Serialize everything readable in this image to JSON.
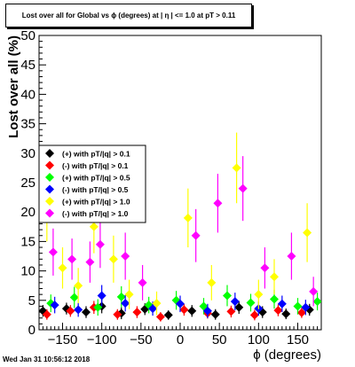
{
  "header": {
    "title": "Lost over all for Global vs ϕ (degrees) at | η | <= 1.0 at pT > 0.11"
  },
  "footer": {
    "timestamp": "Wed Jan 31 10:56:12 2018"
  },
  "colors": {
    "frame": "#000000",
    "background": "#ffffff"
  },
  "chart_data": {
    "type": "scatter",
    "title": "Lost over all for Global vs ϕ (degrees) at | η | <= 1.0 at pT > 0.11",
    "xlabel": "ϕ (degrees)",
    "ylabel": "Lost over all (%)",
    "xlim": [
      -180,
      180
    ],
    "ylim": [
      0,
      50
    ],
    "x_ticks": [
      -150,
      -100,
      -50,
      0,
      50,
      100,
      150
    ],
    "y_ticks": [
      0,
      5,
      10,
      15,
      20,
      25,
      30,
      35,
      40,
      45,
      50
    ],
    "grid": false,
    "legend_position": "middle-left",
    "series": [
      {
        "name": "(+) with pT/|q| > 0.1",
        "color": "#000000",
        "marker": "diamond",
        "points": [
          {
            "x": -175,
            "y": 3.2,
            "err": 1.0
          },
          {
            "x": -145,
            "y": 3.6,
            "err": 1.0
          },
          {
            "x": -120,
            "y": 3.0,
            "err": 1.0
          },
          {
            "x": -100,
            "y": 4.0,
            "err": 1.2
          },
          {
            "x": -75,
            "y": 2.8,
            "err": 1.0
          },
          {
            "x": -45,
            "y": 3.5,
            "err": 1.0
          },
          {
            "x": -15,
            "y": 2.5,
            "err": 0.8
          },
          {
            "x": 15,
            "y": 3.2,
            "err": 1.0
          },
          {
            "x": 45,
            "y": 2.6,
            "err": 0.9
          },
          {
            "x": 75,
            "y": 3.8,
            "err": 1.1
          },
          {
            "x": 105,
            "y": 3.0,
            "err": 1.0
          },
          {
            "x": 135,
            "y": 2.7,
            "err": 0.9
          },
          {
            "x": 165,
            "y": 3.4,
            "err": 1.0
          }
        ]
      },
      {
        "name": "(-) with pT/|q| > 0.1",
        "color": "#ff0000",
        "marker": "diamond",
        "points": [
          {
            "x": -170,
            "y": 2.6,
            "err": 0.9
          },
          {
            "x": -140,
            "y": 3.2,
            "err": 1.0
          },
          {
            "x": -110,
            "y": 3.8,
            "err": 1.1
          },
          {
            "x": -80,
            "y": 2.6,
            "err": 0.9
          },
          {
            "x": -55,
            "y": 3.0,
            "err": 1.0
          },
          {
            "x": -25,
            "y": 2.2,
            "err": 0.8
          },
          {
            "x": 5,
            "y": 3.4,
            "err": 1.0
          },
          {
            "x": 35,
            "y": 2.8,
            "err": 0.9
          },
          {
            "x": 65,
            "y": 3.1,
            "err": 1.0
          },
          {
            "x": 95,
            "y": 2.5,
            "err": 0.9
          },
          {
            "x": 125,
            "y": 3.3,
            "err": 1.0
          },
          {
            "x": 155,
            "y": 2.9,
            "err": 0.9
          }
        ]
      },
      {
        "name": "(+) with pT/|q| > 0.5",
        "color": "#00ff00",
        "marker": "diamond",
        "points": [
          {
            "x": -165,
            "y": 4.5,
            "err": 1.5
          },
          {
            "x": -135,
            "y": 5.5,
            "err": 1.8
          },
          {
            "x": -105,
            "y": 3.8,
            "err": 1.4
          },
          {
            "x": -75,
            "y": 5.6,
            "err": 1.8
          },
          {
            "x": -40,
            "y": 4.2,
            "err": 1.4
          },
          {
            "x": -5,
            "y": 5.0,
            "err": 1.6
          },
          {
            "x": 30,
            "y": 4.0,
            "err": 1.4
          },
          {
            "x": 60,
            "y": 5.8,
            "err": 1.8
          },
          {
            "x": 90,
            "y": 4.6,
            "err": 1.5
          },
          {
            "x": 120,
            "y": 5.2,
            "err": 1.6
          },
          {
            "x": 150,
            "y": 4.0,
            "err": 1.4
          },
          {
            "x": 175,
            "y": 4.8,
            "err": 1.5
          }
        ]
      },
      {
        "name": "(-) with pT/|q| > 0.5",
        "color": "#0000ff",
        "marker": "diamond",
        "points": [
          {
            "x": -160,
            "y": 4.2,
            "err": 1.4
          },
          {
            "x": -130,
            "y": 3.4,
            "err": 1.2
          },
          {
            "x": -100,
            "y": 5.8,
            "err": 1.8
          },
          {
            "x": -70,
            "y": 4.5,
            "err": 1.4
          },
          {
            "x": -35,
            "y": 3.6,
            "err": 1.2
          },
          {
            "x": 0,
            "y": 4.4,
            "err": 1.4
          },
          {
            "x": 35,
            "y": 3.2,
            "err": 1.2
          },
          {
            "x": 70,
            "y": 4.8,
            "err": 1.5
          },
          {
            "x": 100,
            "y": 3.6,
            "err": 1.2
          },
          {
            "x": 130,
            "y": 4.4,
            "err": 1.4
          },
          {
            "x": 160,
            "y": 3.8,
            "err": 1.3
          }
        ]
      },
      {
        "name": "(+) with pT/|q| > 1.0",
        "color": "#ffff00",
        "marker": "diamond",
        "points": [
          {
            "x": -170,
            "y": 19.5,
            "err": 4.5
          },
          {
            "x": -150,
            "y": 10.5,
            "err": 3.5
          },
          {
            "x": -130,
            "y": 7.5,
            "err": 3.0
          },
          {
            "x": -110,
            "y": 17.5,
            "err": 4.5
          },
          {
            "x": -85,
            "y": 12.0,
            "err": 4.0
          },
          {
            "x": -65,
            "y": 6.0,
            "err": 2.5
          },
          {
            "x": -30,
            "y": 4.5,
            "err": 2.0
          },
          {
            "x": 10,
            "y": 19.0,
            "err": 5.0
          },
          {
            "x": 40,
            "y": 8.0,
            "err": 3.0
          },
          {
            "x": 72,
            "y": 27.5,
            "err": 6.0
          },
          {
            "x": 100,
            "y": 6.0,
            "err": 2.5
          },
          {
            "x": 120,
            "y": 9.0,
            "err": 3.0
          },
          {
            "x": 162,
            "y": 16.5,
            "err": 5.0
          }
        ]
      },
      {
        "name": "(-) with pT/|q| > 1.0",
        "color": "#ff00ff",
        "marker": "diamond",
        "points": [
          {
            "x": -162,
            "y": 13.2,
            "err": 4.0
          },
          {
            "x": -138,
            "y": 12.0,
            "err": 3.5
          },
          {
            "x": -115,
            "y": 11.5,
            "err": 3.5
          },
          {
            "x": -102,
            "y": 14.5,
            "err": 4.0
          },
          {
            "x": -70,
            "y": 12.5,
            "err": 4.0
          },
          {
            "x": -48,
            "y": 8.0,
            "err": 3.0
          },
          {
            "x": 20,
            "y": 16.0,
            "err": 4.5
          },
          {
            "x": 48,
            "y": 21.5,
            "err": 5.0
          },
          {
            "x": 80,
            "y": 24.0,
            "err": 5.5
          },
          {
            "x": 108,
            "y": 10.5,
            "err": 3.5
          },
          {
            "x": 142,
            "y": 12.5,
            "err": 4.0
          },
          {
            "x": 170,
            "y": 6.5,
            "err": 2.5
          }
        ]
      }
    ]
  }
}
